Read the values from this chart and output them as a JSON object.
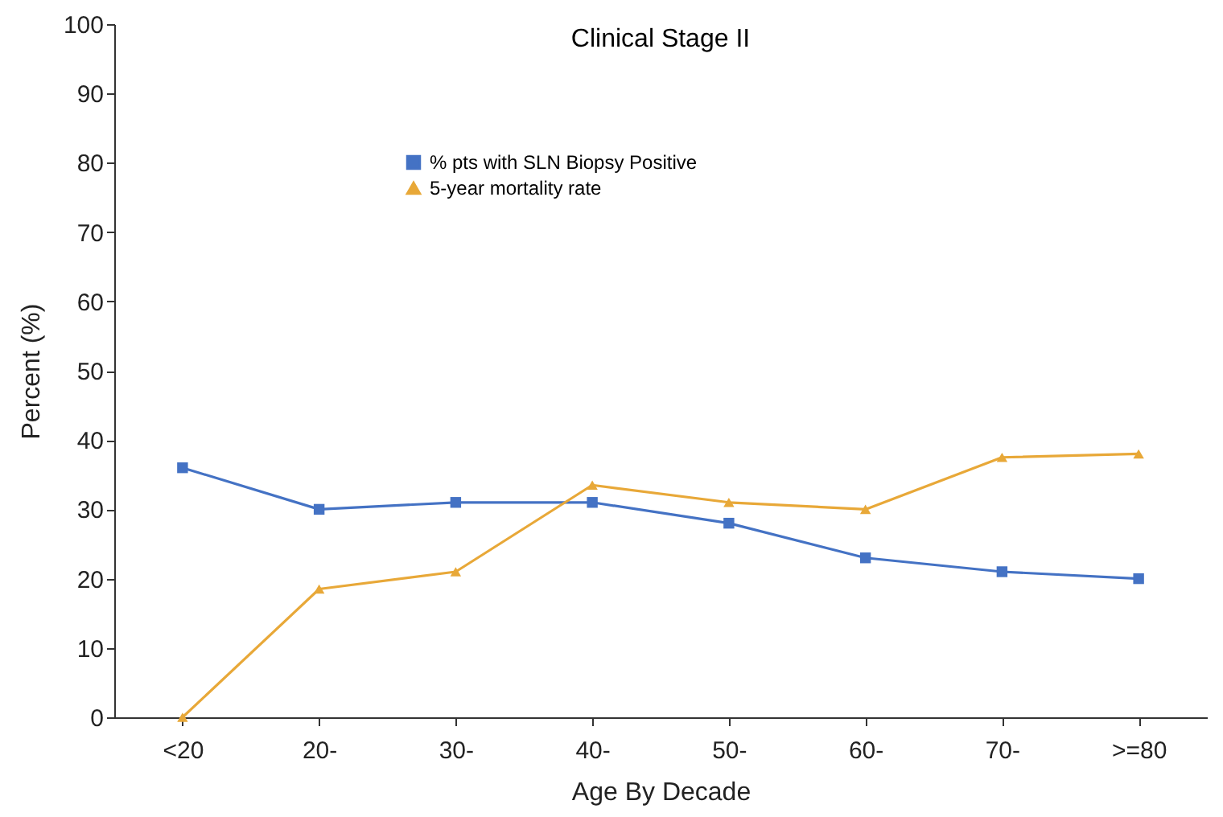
{
  "chart_data": {
    "type": "line",
    "title": "Clinical Stage II",
    "xlabel": "Age By Decade",
    "ylabel": "Percent (%)",
    "categories": [
      "<20",
      "20-",
      "30-",
      "40-",
      "50-",
      "60-",
      "70-",
      ">=80"
    ],
    "series": [
      {
        "name": "% pts with SLN Biopsy Positive",
        "color": "#4472c4",
        "marker": "square",
        "values": [
          36,
          30,
          31,
          31,
          28,
          23,
          21,
          20
        ]
      },
      {
        "name": "5-year mortality rate",
        "color": "#e8a838",
        "marker": "triangle",
        "values": [
          0,
          18.5,
          21,
          33.5,
          31,
          30,
          37.5,
          38
        ]
      }
    ],
    "ylim": [
      0,
      100
    ],
    "yticks": [
      0,
      10,
      20,
      30,
      40,
      50,
      60,
      70,
      80,
      90,
      100
    ],
    "grid": false,
    "legend": "top",
    "line_style": "solid"
  }
}
